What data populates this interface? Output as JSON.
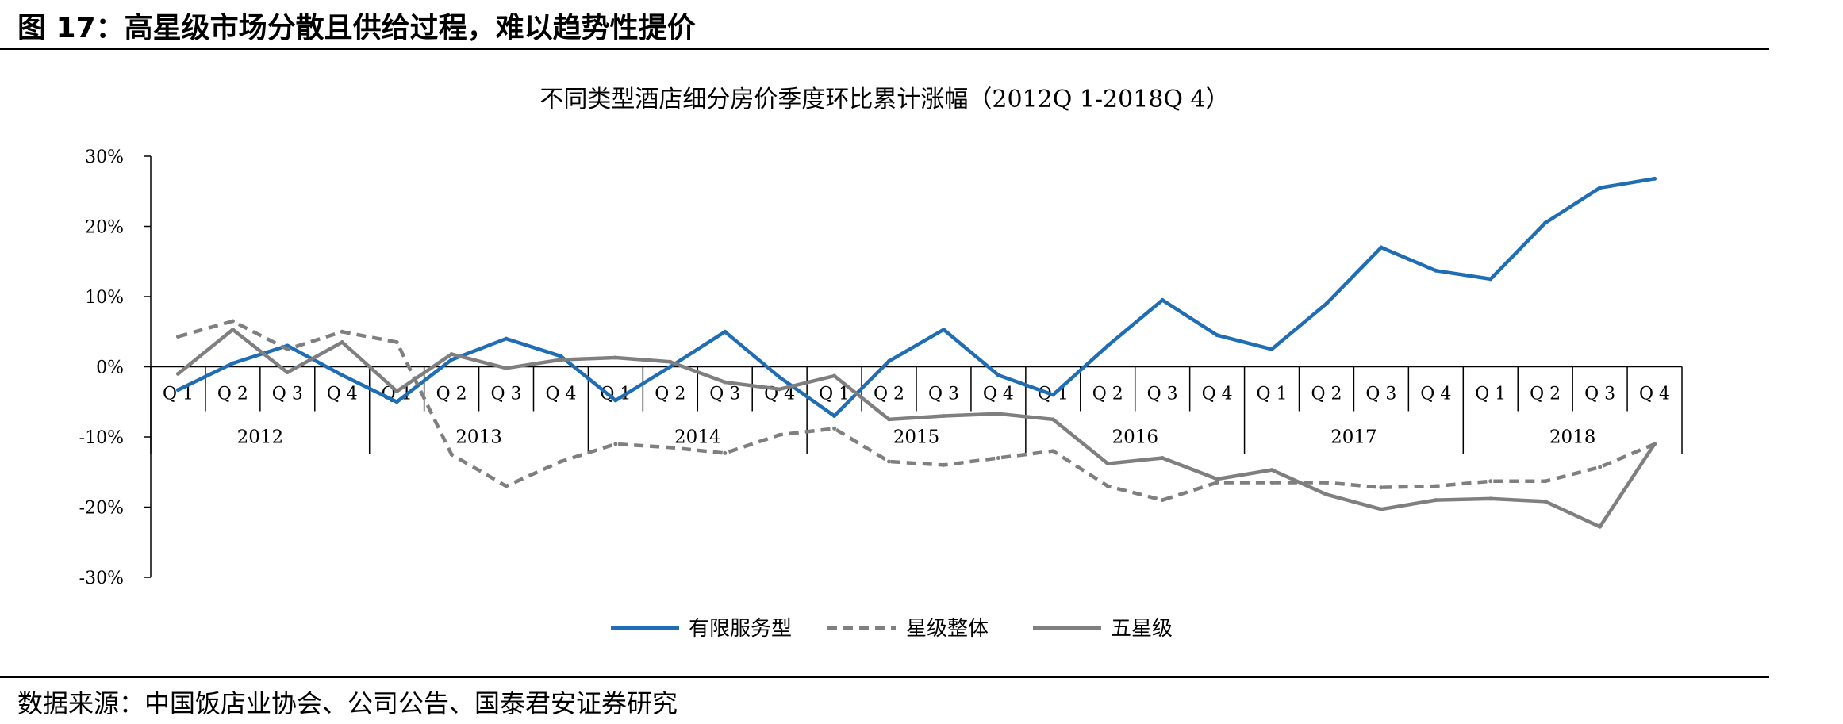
{
  "figure": {
    "title": "图 17：高星级市场分散且供给过程，难以趋势性提价",
    "source": "数据来源：中国饭店业协会、公司公告、国泰君安证券研究"
  },
  "chart_data": {
    "type": "line",
    "title": "不同类型酒店细分房价季度环比累计涨幅（2012Q 1-2018Q 4）",
    "xlabel": "",
    "ylabel": "",
    "ylim": [
      -30,
      30
    ],
    "yticks": [
      30,
      20,
      10,
      0,
      -10,
      -20,
      -30
    ],
    "ytick_labels": [
      "30%",
      "20%",
      "10%",
      "0%",
      "-10%",
      "-20%",
      "-30%"
    ],
    "quarter_labels": [
      "Q 1",
      "Q 2",
      "Q 3",
      "Q 4",
      "Q 1",
      "Q 2",
      "Q 3",
      "Q 4",
      "Q 1",
      "Q 2",
      "Q 3",
      "Q 4",
      "Q 1",
      "Q 2",
      "Q 3",
      "Q 4",
      "Q 1",
      "Q 2",
      "Q 3",
      "Q 4",
      "Q 1",
      "Q 2",
      "Q 3",
      "Q 4",
      "Q 1",
      "Q 2",
      "Q 3",
      "Q 4"
    ],
    "years": [
      "2012",
      "2013",
      "2014",
      "2015",
      "2016",
      "2017",
      "2018"
    ],
    "grid": false,
    "legend_position": "bottom",
    "series": [
      {
        "name": "有限服务型",
        "color": "#1f6db5",
        "style": "solid",
        "values": [
          -3.3,
          0.5,
          3.0,
          -1.2,
          -5.0,
          1.0,
          4.0,
          1.5,
          -4.8,
          0.0,
          5.0,
          -1.5,
          -7.0,
          0.8,
          5.3,
          -1.2,
          -4.0,
          3.0,
          9.5,
          4.5,
          2.5,
          9.0,
          17.0,
          13.7,
          12.5,
          20.5,
          25.5,
          26.8
        ]
      },
      {
        "name": "星级整体",
        "color": "#7f7f7f",
        "style": "dashed",
        "values": [
          4.3,
          6.5,
          2.5,
          5.0,
          3.5,
          -12.5,
          -17.0,
          -13.5,
          -11.0,
          -11.5,
          -12.3,
          -9.7,
          -8.8,
          -13.5,
          -14.0,
          -13.0,
          -12.0,
          -17.0,
          -19.0,
          -16.5,
          -16.5,
          -16.5,
          -17.2,
          -17.0,
          -16.3,
          -16.3,
          -14.3,
          -11.0
        ]
      },
      {
        "name": "五星级",
        "color": "#7f7f7f",
        "style": "solid",
        "values": [
          -1.0,
          5.3,
          -0.8,
          3.5,
          -3.5,
          1.8,
          -0.2,
          1.0,
          1.3,
          0.7,
          -2.2,
          -3.2,
          -1.3,
          -7.5,
          -7.0,
          -6.7,
          -7.5,
          -13.8,
          -13.0,
          -16.0,
          -14.7,
          -18.2,
          -20.3,
          -19.0,
          -18.8,
          -19.2,
          -22.8,
          -11.0
        ]
      }
    ]
  }
}
